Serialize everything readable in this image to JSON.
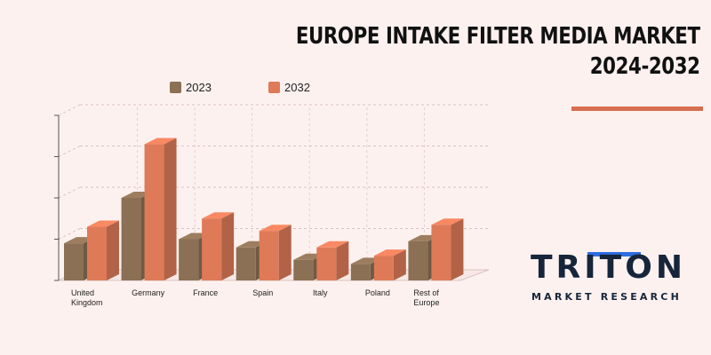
{
  "title": {
    "line1": "EUROPE INTAKE FILTER MEDIA MARKET",
    "line2": "2024-2032"
  },
  "colors": {
    "series_2023": "#8b7055",
    "series_2032": "#de7a58",
    "accent_rule": "#d66f50",
    "logo_blue": "#2d6de0",
    "logo_dark": "#16253a"
  },
  "legend": [
    {
      "label": "2023",
      "color": "#8b7055"
    },
    {
      "label": "2032",
      "color": "#de7a58"
    }
  ],
  "chart_data": {
    "type": "bar",
    "style": "3d-clustered",
    "categories": [
      "United Kingdom",
      "Germany",
      "France",
      "Spain",
      "Italy",
      "Poland",
      "Rest of Europe"
    ],
    "series": [
      {
        "name": "2023",
        "values": [
          0.9,
          2.0,
          1.0,
          0.8,
          0.5,
          0.4,
          0.95
        ]
      },
      {
        "name": "2032",
        "values": [
          1.3,
          3.3,
          1.5,
          1.2,
          0.8,
          0.6,
          1.35
        ]
      }
    ],
    "ylim": [
      0,
      4
    ],
    "grid": true,
    "legend_position": "top",
    "xlabel": "",
    "ylabel": ""
  },
  "logo": {
    "word": "TRITON",
    "sub": "MARKET RESEARCH"
  }
}
